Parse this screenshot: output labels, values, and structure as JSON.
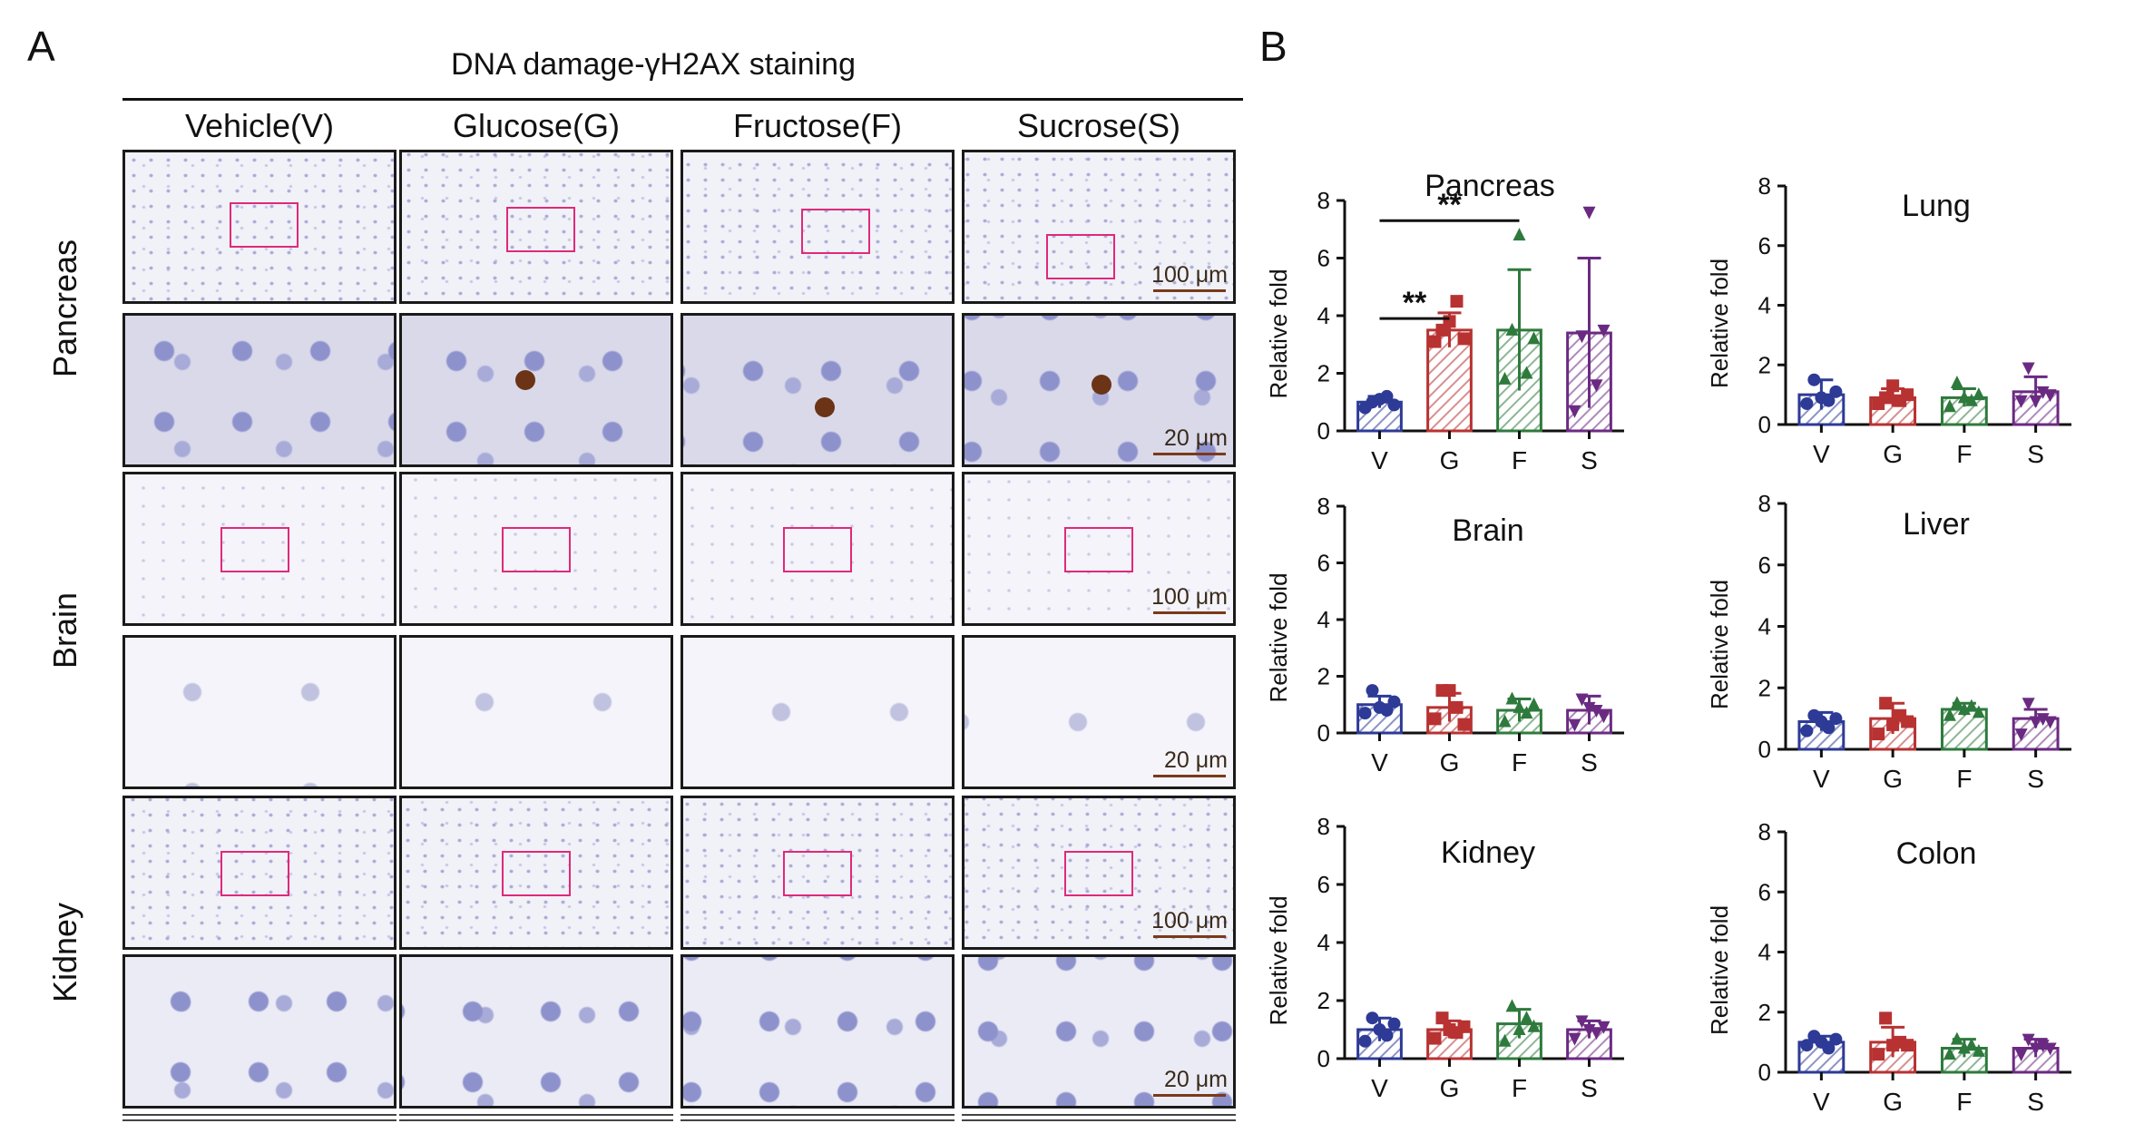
{
  "panel_a": {
    "label": "A",
    "title": "DNA damage-γH2AX staining",
    "columns": [
      "Vehicle(V)",
      "Glucose(G)",
      "Fructose(F)",
      "Sucrose(S)"
    ],
    "rows": [
      "Pancreas",
      "Brain",
      "Kidney"
    ],
    "scale_bar_overview": "100 μm",
    "scale_bar_zoom": "20 μm",
    "roi_color": "#e0297a"
  },
  "panel_b": {
    "label": "B"
  },
  "chart_data": [
    {
      "type": "bar",
      "title": "Pancreas",
      "categories": [
        "V",
        "G",
        "F",
        "S"
      ],
      "ylabel": "Relative fold",
      "ylim": [
        0,
        8
      ],
      "yticks": [
        "0",
        "2",
        "4",
        "6",
        "8"
      ],
      "values": [
        1.0,
        3.5,
        3.5,
        3.4
      ],
      "errors": [
        0.2,
        0.6,
        2.1,
        2.6
      ],
      "points": [
        [
          0.8,
          1.0,
          1.1,
          1.2,
          0.9
        ],
        [
          3.1,
          3.5,
          3.8,
          4.5,
          3.2
        ],
        [
          1.8,
          3.5,
          6.8,
          2.0,
          3.2
        ],
        [
          0.7,
          3.3,
          7.6,
          1.6,
          3.5
        ]
      ],
      "annotations": [
        {
          "text": "**",
          "from": "V",
          "to": "G"
        },
        {
          "text": "**",
          "from": "V",
          "to": "F"
        }
      ]
    },
    {
      "type": "bar",
      "title": "Lung",
      "categories": [
        "V",
        "G",
        "F",
        "S"
      ],
      "ylabel": "Relative fold",
      "ylim": [
        0,
        8
      ],
      "yticks": [
        "0",
        "2",
        "4",
        "6",
        "8"
      ],
      "values": [
        1.0,
        0.9,
        0.9,
        1.1
      ],
      "errors": [
        0.5,
        0.3,
        0.3,
        0.5
      ],
      "points": [
        [
          0.7,
          1.5,
          0.9,
          0.8,
          1.1
        ],
        [
          0.7,
          0.9,
          1.3,
          0.8,
          1.0
        ],
        [
          0.6,
          1.4,
          0.9,
          0.8,
          1.0
        ],
        [
          0.8,
          1.9,
          0.8,
          1.1,
          1.0
        ]
      ],
      "annotations": []
    },
    {
      "type": "bar",
      "title": "Brain",
      "categories": [
        "V",
        "G",
        "F",
        "S"
      ],
      "ylabel": "Relative fold",
      "ylim": [
        0,
        8
      ],
      "yticks": [
        "0",
        "2",
        "4",
        "6",
        "8"
      ],
      "values": [
        1.0,
        0.9,
        0.8,
        0.8
      ],
      "errors": [
        0.3,
        0.5,
        0.4,
        0.5
      ],
      "points": [
        [
          0.7,
          1.5,
          0.9,
          0.8,
          1.1
        ],
        [
          0.5,
          1.5,
          1.5,
          0.9,
          0.3
        ],
        [
          0.4,
          1.2,
          0.9,
          0.7,
          1.0
        ],
        [
          0.3,
          1.2,
          0.9,
          0.8,
          0.6
        ]
      ],
      "annotations": []
    },
    {
      "type": "bar",
      "title": "Liver",
      "categories": [
        "V",
        "G",
        "F",
        "S"
      ],
      "ylabel": "Relative fold",
      "ylim": [
        0,
        8
      ],
      "yticks": [
        "0",
        "2",
        "4",
        "6",
        "8"
      ],
      "values": [
        0.9,
        1.0,
        1.3,
        1.0
      ],
      "errors": [
        0.3,
        0.5,
        0.2,
        0.3
      ],
      "points": [
        [
          0.6,
          1.1,
          0.9,
          0.7,
          1.0
        ],
        [
          0.5,
          1.5,
          0.8,
          1.1,
          0.9
        ],
        [
          1.1,
          1.5,
          1.3,
          1.4,
          1.2
        ],
        [
          0.5,
          1.5,
          0.9,
          1.0,
          0.9
        ]
      ],
      "annotations": []
    },
    {
      "type": "bar",
      "title": "Kidney",
      "categories": [
        "V",
        "G",
        "F",
        "S"
      ],
      "ylabel": "Relative fold",
      "ylim": [
        0,
        8
      ],
      "yticks": [
        "0",
        "2",
        "4",
        "6",
        "8"
      ],
      "values": [
        1.0,
        1.0,
        1.2,
        1.0
      ],
      "errors": [
        0.4,
        0.3,
        0.5,
        0.3
      ],
      "points": [
        [
          0.6,
          1.4,
          1.0,
          0.8,
          1.2
        ],
        [
          0.7,
          1.4,
          1.0,
          0.9,
          1.1
        ],
        [
          0.6,
          1.8,
          1.0,
          1.4,
          1.1
        ],
        [
          0.7,
          1.3,
          1.0,
          0.9,
          1.1
        ]
      ],
      "annotations": []
    },
    {
      "type": "bar",
      "title": "Colon",
      "categories": [
        "V",
        "G",
        "F",
        "S"
      ],
      "ylabel": "Relative fold",
      "ylim": [
        0,
        8
      ],
      "yticks": [
        "0",
        "2",
        "4",
        "6",
        "8"
      ],
      "values": [
        1.0,
        1.0,
        0.8,
        0.8
      ],
      "errors": [
        0.2,
        0.5,
        0.3,
        0.3
      ],
      "points": [
        [
          0.9,
          1.2,
          1.0,
          0.8,
          1.1
        ],
        [
          0.6,
          1.8,
          0.9,
          1.0,
          0.9
        ],
        [
          0.6,
          1.1,
          0.8,
          0.9,
          0.7
        ],
        [
          0.6,
          1.1,
          0.8,
          0.9,
          0.8
        ]
      ],
      "annotations": []
    }
  ],
  "series_colors": [
    "#2d3a96",
    "#b83232",
    "#2e7a3c",
    "#6b2a82"
  ]
}
